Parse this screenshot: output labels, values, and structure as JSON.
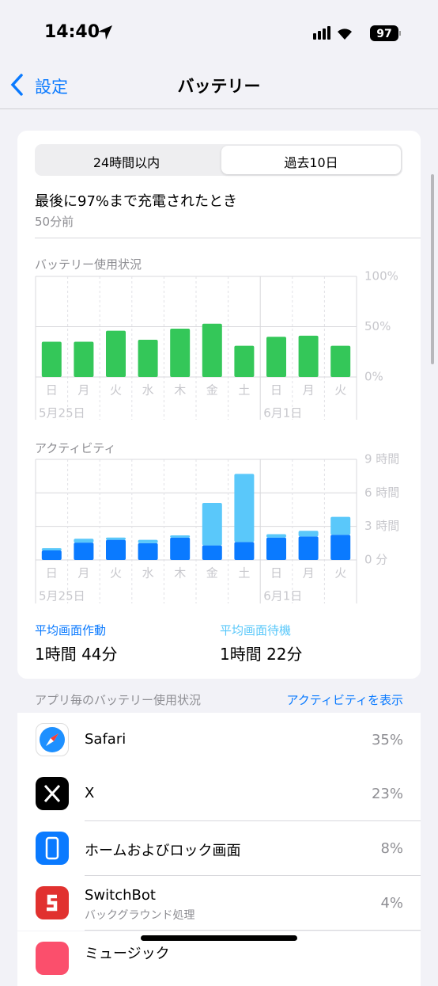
{
  "status_bar": {
    "time": "14:40",
    "battery": "97"
  },
  "nav": {
    "back": "設定",
    "title": "バッテリー"
  },
  "segments": [
    "24時間以内",
    "過去10日"
  ],
  "last_charge": {
    "title": "最後に97%まで充電されたとき",
    "time": "50分前"
  },
  "battery_chart": {
    "type": "bar",
    "title": "バッテリー使用状況",
    "categories": [
      "日",
      "月",
      "火",
      "水",
      "木",
      "金",
      "土",
      "日",
      "月",
      "火"
    ],
    "dates": [
      "5月25日",
      null,
      null,
      null,
      null,
      null,
      null,
      "6月1日",
      null,
      null
    ],
    "values": [
      35,
      35,
      46,
      37,
      48,
      53,
      31,
      40,
      41,
      31
    ],
    "color": "#34c759",
    "ylim": [
      0,
      100
    ],
    "yticks": [
      {
        "value": 0,
        "label": "0%"
      },
      {
        "value": 50,
        "label": "50%"
      },
      {
        "value": 100,
        "label": "100%"
      }
    ]
  },
  "activity_chart": {
    "type": "stacked_bar",
    "title": "アクティビティ",
    "categories": [
      "日",
      "月",
      "火",
      "水",
      "木",
      "金",
      "土",
      "日",
      "月",
      "火"
    ],
    "dates": [
      "5月25日",
      null,
      null,
      null,
      null,
      null,
      null,
      "6月1日",
      null,
      null
    ],
    "series": [
      {
        "color": "#0a7aff",
        "values": [
          0.85,
          1.55,
          1.8,
          1.5,
          2.0,
          1.3,
          1.6,
          2.0,
          2.1,
          2.25
        ]
      },
      {
        "color": "#5ac8fa",
        "values": [
          0.2,
          0.35,
          0.2,
          0.3,
          0.2,
          3.8,
          6.1,
          0.3,
          0.5,
          1.6
        ]
      }
    ],
    "ylim": [
      0,
      9
    ],
    "yticks": [
      {
        "value": 0,
        "label": "0 分"
      },
      {
        "value": 3,
        "label": "3 時間"
      },
      {
        "value": 6,
        "label": "6 時間"
      },
      {
        "value": 9,
        "label": "9 時間"
      }
    ]
  },
  "averages": [
    {
      "label": "平均画面作動",
      "value": "1時間 44分"
    },
    {
      "label": "平均画面待機",
      "value": "1時間 22分"
    }
  ],
  "app_usage": {
    "title": "アプリ毎のバッテリー使用状況",
    "link": "アクティビティを表示",
    "apps": [
      {
        "name": "Safari",
        "percent": "35%"
      },
      {
        "name": "X",
        "percent": "23%"
      },
      {
        "name": "ホームおよびロック画面",
        "percent": "8%"
      },
      {
        "name": "SwitchBot",
        "subtitle": "バックグラウンド処理",
        "percent": "4%"
      },
      {
        "name": "ミュージック"
      }
    ]
  }
}
